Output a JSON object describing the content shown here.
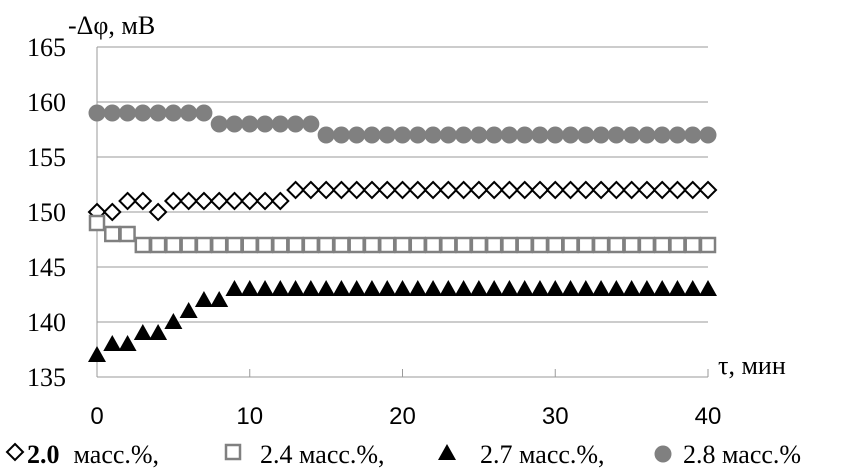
{
  "chart_data": {
    "type": "scatter",
    "ylabel": "-Δφ, мВ",
    "xlabel": "τ, мин",
    "xlim": [
      0,
      40
    ],
    "ylim": [
      135,
      165
    ],
    "x_ticks": [
      0,
      10,
      20,
      30,
      40
    ],
    "y_ticks": [
      135,
      140,
      145,
      150,
      155,
      160,
      165
    ],
    "grid": "horizontal",
    "legend_position": "bottom",
    "x": [
      0,
      1,
      2,
      3,
      4,
      5,
      6,
      7,
      8,
      9,
      10,
      11,
      12,
      13,
      14,
      15,
      16,
      17,
      18,
      19,
      20,
      21,
      22,
      23,
      24,
      25,
      26,
      27,
      28,
      29,
      30,
      31,
      32,
      33,
      34,
      35,
      36,
      37,
      38,
      39,
      40
    ],
    "series": [
      {
        "name": "2.0",
        "legend_bold": "2.0",
        "legend_suffix": "масс.%,",
        "marker": "diamond-open",
        "color": "#000000",
        "values": [
          150,
          150,
          151,
          151,
          150,
          151,
          151,
          151,
          151,
          151,
          151,
          151,
          151,
          152,
          152,
          152,
          152,
          152,
          152,
          152,
          152,
          152,
          152,
          152,
          152,
          152,
          152,
          152,
          152,
          152,
          152,
          152,
          152,
          152,
          152,
          152,
          152,
          152,
          152,
          152,
          152
        ]
      },
      {
        "name": "2.4 масс.%,",
        "marker": "square-open",
        "color": "#808080",
        "values": [
          149,
          148,
          148,
          147,
          147,
          147,
          147,
          147,
          147,
          147,
          147,
          147,
          147,
          147,
          147,
          147,
          147,
          147,
          147,
          147,
          147,
          147,
          147,
          147,
          147,
          147,
          147,
          147,
          147,
          147,
          147,
          147,
          147,
          147,
          147,
          147,
          147,
          147,
          147,
          147,
          147
        ]
      },
      {
        "name": "2.7 масс.%,",
        "marker": "triangle-filled",
        "color": "#000000",
        "values": [
          137,
          138,
          138,
          139,
          139,
          140,
          141,
          142,
          142,
          143,
          143,
          143,
          143,
          143,
          143,
          143,
          143,
          143,
          143,
          143,
          143,
          143,
          143,
          143,
          143,
          143,
          143,
          143,
          143,
          143,
          143,
          143,
          143,
          143,
          143,
          143,
          143,
          143,
          143,
          143,
          143
        ]
      },
      {
        "name": "2.8 масс.%",
        "marker": "circle-filled",
        "color": "#808080",
        "values": [
          159,
          159,
          159,
          159,
          159,
          159,
          159,
          159,
          158,
          158,
          158,
          158,
          158,
          158,
          158,
          157,
          157,
          157,
          157,
          157,
          157,
          157,
          157,
          157,
          157,
          157,
          157,
          157,
          157,
          157,
          157,
          157,
          157,
          157,
          157,
          157,
          157,
          157,
          157,
          157,
          157
        ]
      }
    ]
  }
}
